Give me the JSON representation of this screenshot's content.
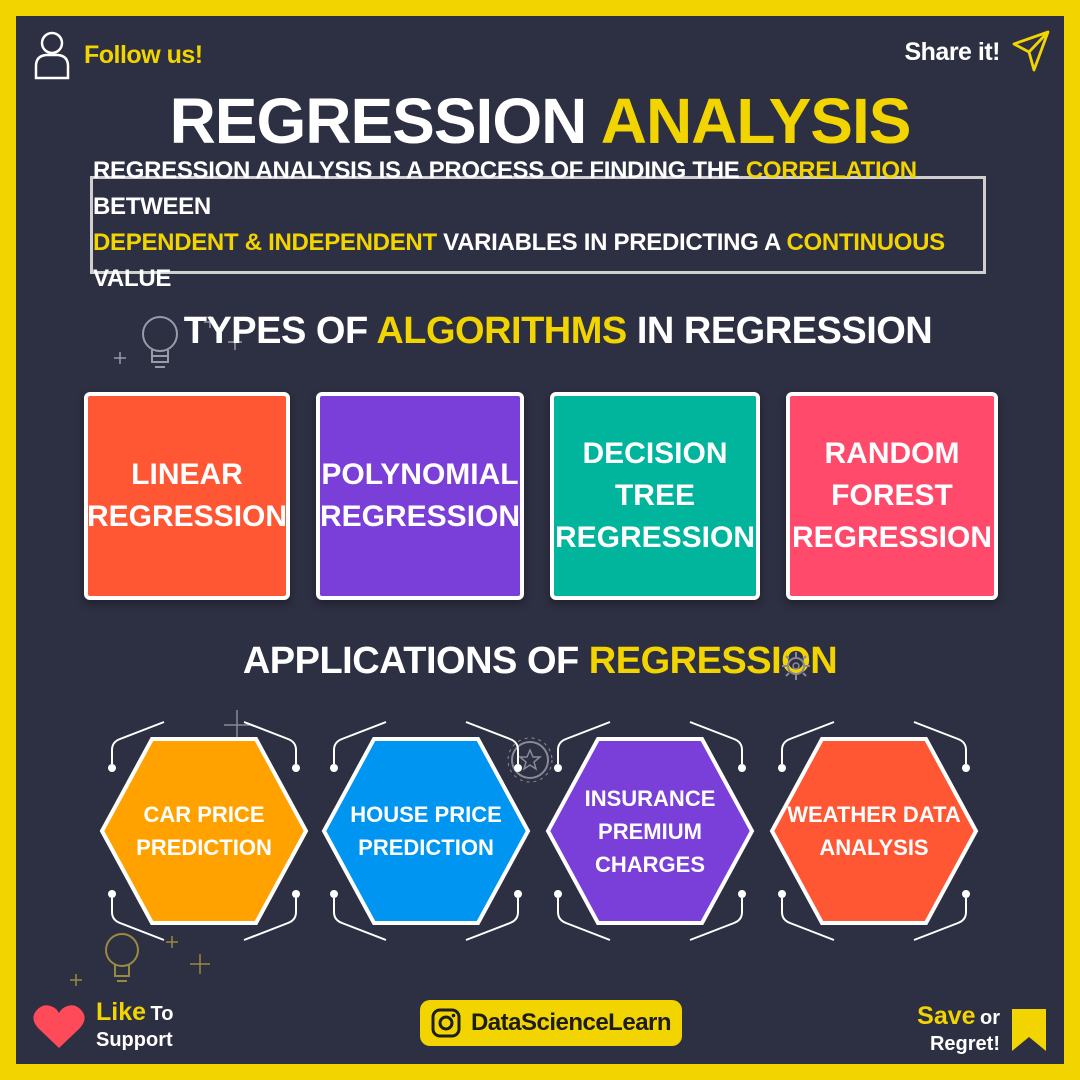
{
  "header": {
    "follow_label": "Follow us!",
    "share_label": "Share it!",
    "follow_icon": "user-icon",
    "share_icon": "paper-plane-icon"
  },
  "title": {
    "part1": "REGRESSION",
    "part2": "ANALYSIS"
  },
  "definition": {
    "line1": [
      {
        "text": "REGRESSION ANALYSIS IS A PROCESS OF FINDING THE ",
        "highlight": false
      },
      {
        "text": "CORRELATION",
        "highlight": true
      },
      {
        "text": " BETWEEN",
        "highlight": false
      }
    ],
    "line2": [
      {
        "text": "DEPENDENT & INDEPENDENT",
        "highlight": true
      },
      {
        "text": " VARIABLES IN PREDICTING A ",
        "highlight": false
      },
      {
        "text": "CONTINUOUS",
        "highlight": true
      },
      {
        "text": " VALUE",
        "highlight": false
      }
    ]
  },
  "types": {
    "title_part1": "TYPES OF",
    "title_part2": "ALGORITHMS",
    "title_part3": "IN REGRESSION",
    "items": [
      {
        "label_lines": [
          "LINEAR",
          "REGRESSION"
        ],
        "color": "#ff5733"
      },
      {
        "label_lines": [
          "POLYNOMIAL",
          "REGRESSION"
        ],
        "color": "#7b3fd9"
      },
      {
        "label_lines": [
          "DECISION",
          "TREE",
          "REGRESSION"
        ],
        "color": "#00b59b"
      },
      {
        "label_lines": [
          "RANDOM",
          "FOREST",
          "REGRESSION"
        ],
        "color": "#ff4a6b"
      }
    ]
  },
  "applications": {
    "title_part1": "APPLICATIONS OF",
    "title_part2": "REGRESSION",
    "items": [
      {
        "label_lines": [
          "CAR PRICE",
          "PREDICTION"
        ],
        "color": "#ffa200"
      },
      {
        "label_lines": [
          "HOUSE PRICE",
          "PREDICTION"
        ],
        "color": "#0095f0"
      },
      {
        "label_lines": [
          "INSURANCE",
          "PREMIUM",
          "CHARGES"
        ],
        "color": "#7b3fd9"
      },
      {
        "label_lines": [
          "WEATHER DATA",
          "ANALYSIS"
        ],
        "color": "#ff5733"
      }
    ]
  },
  "footer": {
    "like_big": "Like",
    "like_small1": "To",
    "like_small2": "Support",
    "handle": "DataScienceLearn",
    "save_big": "Save",
    "save_small1": "or",
    "save_small2": "Regret!",
    "like_icon": "heart-icon",
    "handle_icon": "instagram-icon",
    "save_icon": "bookmark-icon"
  },
  "colors": {
    "background": "#2d2f42",
    "accent": "#f2d400",
    "border": "#f2d400"
  }
}
